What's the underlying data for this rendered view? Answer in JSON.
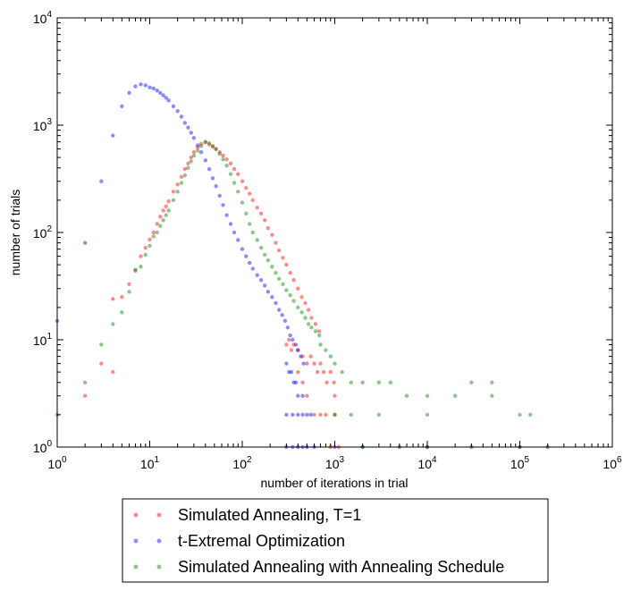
{
  "chart_data": {
    "type": "scatter",
    "title": "",
    "xlabel": "number of iterations in trial",
    "ylabel": "number of trials",
    "xscale": "log",
    "yscale": "log",
    "xlim": [
      1,
      1000000
    ],
    "ylim": [
      1,
      10000
    ],
    "grid": false,
    "legend_position": "below plot",
    "x_ticks": [
      {
        "value": 1,
        "label_base": "10",
        "label_exp": "0"
      },
      {
        "value": 10,
        "label_base": "10",
        "label_exp": "1"
      },
      {
        "value": 100,
        "label_base": "10",
        "label_exp": "2"
      },
      {
        "value": 1000,
        "label_base": "10",
        "label_exp": "3"
      },
      {
        "value": 10000,
        "label_base": "10",
        "label_exp": "4"
      },
      {
        "value": 100000,
        "label_base": "10",
        "label_exp": "5"
      },
      {
        "value": 1000000,
        "label_base": "10",
        "label_exp": "6"
      }
    ],
    "y_ticks": [
      {
        "value": 1,
        "label_base": "10",
        "label_exp": "0"
      },
      {
        "value": 10,
        "label_base": "10",
        "label_exp": "1"
      },
      {
        "value": 100,
        "label_base": "10",
        "label_exp": "2"
      },
      {
        "value": 1000,
        "label_base": "10",
        "label_exp": "3"
      },
      {
        "value": 10000,
        "label_base": "10",
        "label_exp": "4"
      }
    ],
    "series": [
      {
        "name": "Simulated Annealing, T=1",
        "color": "#ff0000",
        "points": [
          [
            1,
            2
          ],
          [
            2,
            3
          ],
          [
            3,
            6
          ],
          [
            4,
            5
          ],
          [
            4,
            24
          ],
          [
            5,
            25
          ],
          [
            6,
            33
          ],
          [
            7,
            44
          ],
          [
            8,
            60
          ],
          [
            9,
            72
          ],
          [
            10,
            86
          ],
          [
            11,
            100
          ],
          [
            12,
            120
          ],
          [
            13,
            140
          ],
          [
            14,
            160
          ],
          [
            15,
            175
          ],
          [
            16,
            195
          ],
          [
            18,
            240
          ],
          [
            20,
            280
          ],
          [
            22,
            330
          ],
          [
            24,
            390
          ],
          [
            26,
            440
          ],
          [
            28,
            500
          ],
          [
            30,
            560
          ],
          [
            33,
            620
          ],
          [
            36,
            670
          ],
          [
            40,
            690
          ],
          [
            44,
            660
          ],
          [
            48,
            630
          ],
          [
            52,
            600
          ],
          [
            57,
            560
          ],
          [
            62,
            520
          ],
          [
            68,
            480
          ],
          [
            75,
            440
          ],
          [
            82,
            390
          ],
          [
            90,
            350
          ],
          [
            100,
            300
          ],
          [
            110,
            260
          ],
          [
            120,
            230
          ],
          [
            130,
            200
          ],
          [
            145,
            170
          ],
          [
            160,
            150
          ],
          [
            175,
            130
          ],
          [
            190,
            110
          ],
          [
            210,
            95
          ],
          [
            230,
            80
          ],
          [
            250,
            68
          ],
          [
            275,
            58
          ],
          [
            300,
            50
          ],
          [
            330,
            42
          ],
          [
            360,
            36
          ],
          [
            400,
            30
          ],
          [
            440,
            25
          ],
          [
            480,
            22
          ],
          [
            520,
            19
          ],
          [
            560,
            16
          ],
          [
            620,
            14
          ],
          [
            680,
            12
          ],
          [
            300,
            9
          ],
          [
            320,
            10
          ],
          [
            340,
            8
          ],
          [
            360,
            9
          ],
          [
            400,
            8
          ],
          [
            450,
            7
          ],
          [
            500,
            6
          ],
          [
            550,
            7
          ],
          [
            600,
            6
          ],
          [
            650,
            5
          ],
          [
            700,
            6
          ],
          [
            760,
            5
          ],
          [
            820,
            4
          ],
          [
            900,
            5
          ],
          [
            980,
            4
          ],
          [
            1000,
            3
          ],
          [
            400,
            5
          ],
          [
            450,
            4
          ],
          [
            500,
            3
          ],
          [
            600,
            2
          ],
          [
            700,
            2
          ],
          [
            800,
            2
          ],
          [
            900,
            1
          ],
          [
            1000,
            2
          ],
          [
            1100,
            1
          ]
        ]
      },
      {
        "name": "t-Extremal Optimization",
        "color": "#0000ff",
        "points": [
          [
            1,
            15
          ],
          [
            2,
            80
          ],
          [
            3,
            300
          ],
          [
            4,
            800
          ],
          [
            5,
            1500
          ],
          [
            6,
            2000
          ],
          [
            7,
            2300
          ],
          [
            8,
            2400
          ],
          [
            9,
            2350
          ],
          [
            10,
            2250
          ],
          [
            11,
            2200
          ],
          [
            12,
            2100
          ],
          [
            13,
            2000
          ],
          [
            14,
            1900
          ],
          [
            15,
            1800
          ],
          [
            16,
            1700
          ],
          [
            18,
            1500
          ],
          [
            20,
            1350
          ],
          [
            22,
            1200
          ],
          [
            24,
            1050
          ],
          [
            26,
            950
          ],
          [
            28,
            850
          ],
          [
            30,
            760
          ],
          [
            33,
            650
          ],
          [
            36,
            560
          ],
          [
            40,
            470
          ],
          [
            44,
            390
          ],
          [
            48,
            320
          ],
          [
            52,
            270
          ],
          [
            57,
            220
          ],
          [
            62,
            180
          ],
          [
            68,
            145
          ],
          [
            75,
            120
          ],
          [
            82,
            100
          ],
          [
            90,
            85
          ],
          [
            100,
            70
          ],
          [
            110,
            60
          ],
          [
            120,
            52
          ],
          [
            130,
            46
          ],
          [
            145,
            40
          ],
          [
            160,
            36
          ],
          [
            175,
            32
          ],
          [
            190,
            28
          ],
          [
            210,
            25
          ],
          [
            230,
            22
          ],
          [
            250,
            19
          ],
          [
            270,
            17
          ],
          [
            290,
            15
          ],
          [
            310,
            13
          ],
          [
            330,
            11
          ],
          [
            350,
            10
          ],
          [
            380,
            9
          ],
          [
            400,
            8
          ],
          [
            430,
            7
          ],
          [
            460,
            6
          ],
          [
            300,
            6
          ],
          [
            320,
            5
          ],
          [
            340,
            5
          ],
          [
            360,
            4
          ],
          [
            380,
            4
          ],
          [
            400,
            3
          ],
          [
            450,
            3
          ],
          [
            300,
            2
          ],
          [
            350,
            2
          ],
          [
            400,
            2
          ],
          [
            450,
            2
          ],
          [
            500,
            2
          ],
          [
            550,
            2
          ],
          [
            300,
            1
          ],
          [
            350,
            1
          ],
          [
            400,
            1
          ],
          [
            450,
            1
          ],
          [
            500,
            1
          ],
          [
            600,
            1
          ],
          [
            1000,
            1
          ],
          [
            2000,
            1
          ],
          [
            5000,
            1
          ],
          [
            10000,
            1
          ],
          [
            30000,
            1
          ],
          [
            100000,
            1
          ],
          [
            200000,
            1
          ]
        ]
      },
      {
        "name": "Simulated Annealing with Annealing Schedule",
        "color": "#008000",
        "points": [
          [
            2,
            4
          ],
          [
            3,
            9
          ],
          [
            4,
            14
          ],
          [
            5,
            18
          ],
          [
            6,
            28
          ],
          [
            7,
            45
          ],
          [
            8,
            48
          ],
          [
            9,
            62
          ],
          [
            10,
            75
          ],
          [
            11,
            92
          ],
          [
            12,
            100
          ],
          [
            13,
            115
          ],
          [
            14,
            130
          ],
          [
            15,
            145
          ],
          [
            16,
            160
          ],
          [
            18,
            200
          ],
          [
            20,
            240
          ],
          [
            22,
            290
          ],
          [
            24,
            340
          ],
          [
            26,
            400
          ],
          [
            28,
            460
          ],
          [
            30,
            520
          ],
          [
            33,
            580
          ],
          [
            36,
            640
          ],
          [
            40,
            700
          ],
          [
            44,
            680
          ],
          [
            48,
            640
          ],
          [
            52,
            600
          ],
          [
            57,
            540
          ],
          [
            62,
            480
          ],
          [
            68,
            420
          ],
          [
            75,
            350
          ],
          [
            82,
            290
          ],
          [
            90,
            240
          ],
          [
            100,
            190
          ],
          [
            110,
            150
          ],
          [
            120,
            120
          ],
          [
            130,
            100
          ],
          [
            145,
            85
          ],
          [
            160,
            72
          ],
          [
            175,
            62
          ],
          [
            190,
            55
          ],
          [
            210,
            48
          ],
          [
            230,
            42
          ],
          [
            250,
            37
          ],
          [
            275,
            33
          ],
          [
            300,
            29
          ],
          [
            330,
            26
          ],
          [
            360,
            23
          ],
          [
            400,
            20
          ],
          [
            440,
            18
          ],
          [
            480,
            16
          ],
          [
            520,
            14
          ],
          [
            560,
            13
          ],
          [
            620,
            12
          ],
          [
            680,
            11
          ],
          [
            700,
            9
          ],
          [
            800,
            8
          ],
          [
            900,
            7
          ],
          [
            1000,
            6
          ],
          [
            1200,
            5
          ],
          [
            1500,
            4
          ],
          [
            2000,
            4
          ],
          [
            3000,
            4
          ],
          [
            4000,
            4
          ],
          [
            6000,
            3
          ],
          [
            10000,
            3
          ],
          [
            20000,
            3
          ],
          [
            50000,
            3
          ],
          [
            100000,
            2
          ],
          [
            130000,
            2
          ],
          [
            50000,
            4
          ],
          [
            30000,
            4
          ],
          [
            10000,
            2
          ],
          [
            3000,
            2
          ],
          [
            1500,
            2
          ],
          [
            1000,
            2
          ],
          [
            2000,
            1
          ],
          [
            10000,
            1
          ],
          [
            100000,
            1
          ]
        ]
      }
    ]
  }
}
